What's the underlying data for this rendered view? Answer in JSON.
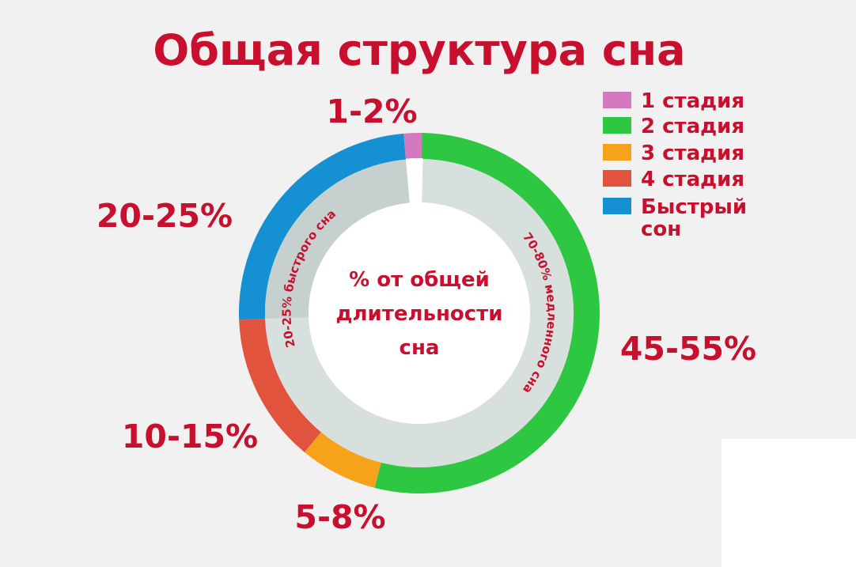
{
  "chart_data": {
    "type": "pie",
    "title": "Общая структура сна",
    "center_label_lines": [
      "% от общей",
      "длительности",
      "сна"
    ],
    "colors": {
      "stage1": "#d478c0",
      "stage2": "#2ec742",
      "stage3": "#f7a21b",
      "stage4": "#e2533d",
      "rem": "#1591d3",
      "inner_ring": "#d7e0dd",
      "text": "#c8102e"
    },
    "slices": [
      {
        "key": "stage1",
        "legend": "1 стадия",
        "value_label": "1-2%",
        "value_range": [
          1,
          2
        ]
      },
      {
        "key": "stage2",
        "legend": "2 стадия",
        "value_label": "45-55%",
        "value_range": [
          45,
          55
        ]
      },
      {
        "key": "stage3",
        "legend": "3 стадия",
        "value_label": "5-8%",
        "value_range": [
          5,
          8
        ]
      },
      {
        "key": "stage4",
        "legend": "4 стадия",
        "value_label": "10-15%",
        "value_range": [
          10,
          15
        ]
      },
      {
        "key": "rem",
        "legend_lines": [
          "Быстрый",
          "сон"
        ],
        "value_label": "20-25%",
        "value_range": [
          20,
          25
        ]
      }
    ],
    "inner_labels": {
      "rem": "20-25% быстрого сна",
      "nrem": "70-80% медленного сна"
    },
    "legend_position": "top-right"
  }
}
